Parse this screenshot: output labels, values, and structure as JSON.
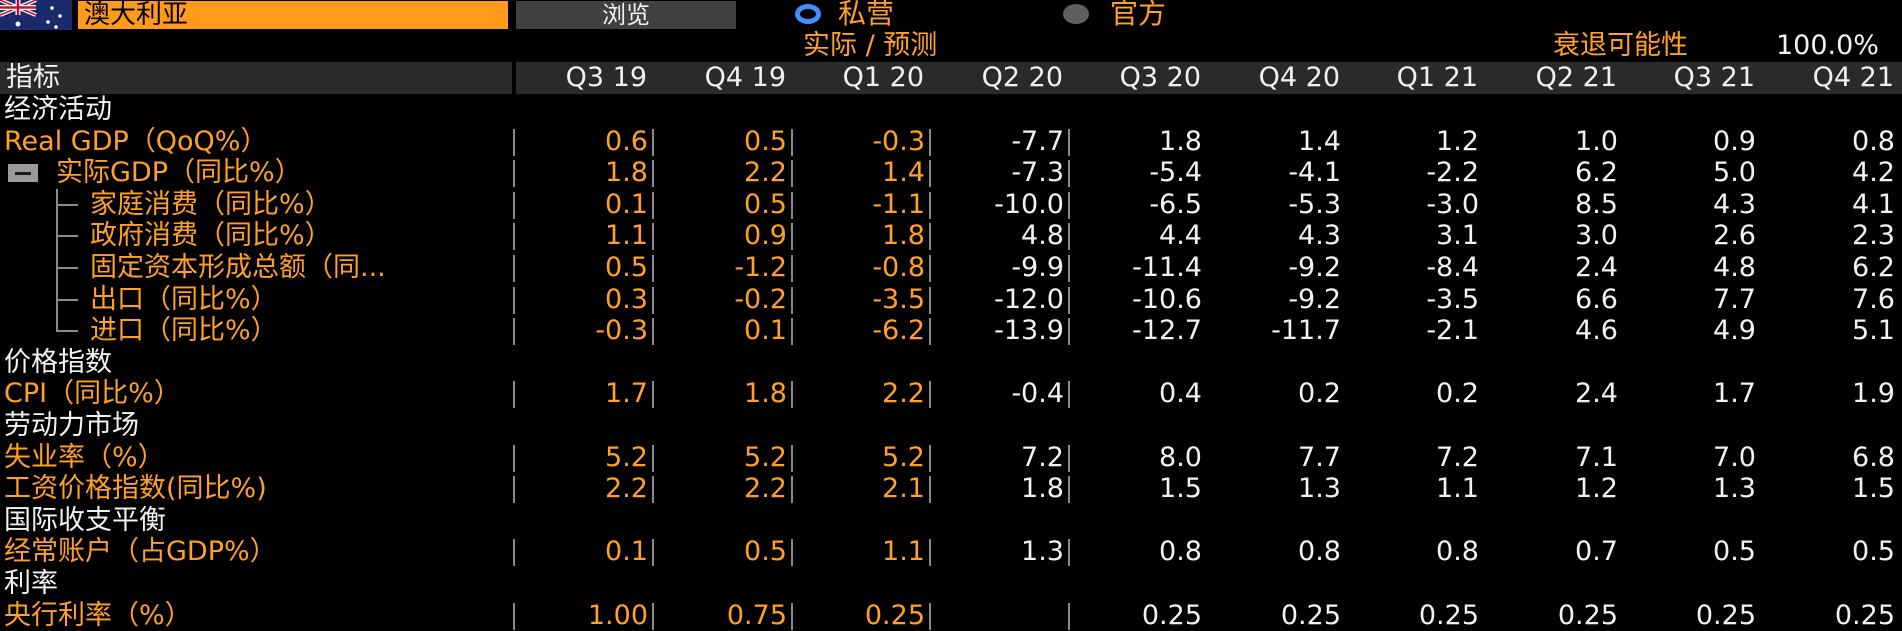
{
  "header": {
    "country": "澳大利亚",
    "browse_label": "浏览",
    "radio_private_label": "私营",
    "radio_official_label": "官方",
    "selected_source": "私营",
    "actual_forecast_label": "实际 / 预测",
    "recession_label": "衰退可能性",
    "recession_value": "100.0%"
  },
  "colors": {
    "orange": "#ffa028",
    "input_bg": "#ff9a1a",
    "radio_selected": "#3f8fff",
    "header_bg": "#2a2a2a"
  },
  "table": {
    "indicator_header": "指标",
    "columns": [
      "Q3 19",
      "Q4 19",
      "Q1 20",
      "Q2 20",
      "Q3 20",
      "Q4 20",
      "Q1 21",
      "Q2 21",
      "Q3 21",
      "Q4 21"
    ],
    "rows": [
      {
        "kind": "section",
        "label": "经济活动"
      },
      {
        "kind": "data",
        "label": "Real GDP（QoQ%）",
        "values": [
          "0.6",
          "0.5",
          "-0.3",
          "-7.7",
          "1.8",
          "1.4",
          "1.2",
          "1.0",
          "0.9",
          "0.8"
        ]
      },
      {
        "kind": "parent",
        "label": "实际GDP（同比%）",
        "values": [
          "1.8",
          "2.2",
          "1.4",
          "-7.3",
          "-5.4",
          "-4.1",
          "-2.2",
          "6.2",
          "5.0",
          "4.2"
        ]
      },
      {
        "kind": "child",
        "label": "家庭消费（同比%）",
        "values": [
          "0.1",
          "0.5",
          "-1.1",
          "-10.0",
          "-6.5",
          "-5.3",
          "-3.0",
          "8.5",
          "4.3",
          "4.1"
        ]
      },
      {
        "kind": "child",
        "label": "政府消费（同比%）",
        "values": [
          "1.1",
          "0.9",
          "1.8",
          "4.8",
          "4.4",
          "4.3",
          "3.1",
          "3.0",
          "2.6",
          "2.3"
        ]
      },
      {
        "kind": "child",
        "label": "固定资本形成总额（同...",
        "values": [
          "0.5",
          "-1.2",
          "-0.8",
          "-9.9",
          "-11.4",
          "-9.2",
          "-8.4",
          "2.4",
          "4.8",
          "6.2"
        ]
      },
      {
        "kind": "child",
        "label": "出口（同比%）",
        "values": [
          "0.3",
          "-0.2",
          "-3.5",
          "-12.0",
          "-10.6",
          "-9.2",
          "-3.5",
          "6.6",
          "7.7",
          "7.6"
        ]
      },
      {
        "kind": "child-last",
        "label": "进口（同比%）",
        "values": [
          "-0.3",
          "0.1",
          "-6.2",
          "-13.9",
          "-12.7",
          "-11.7",
          "-2.1",
          "4.6",
          "4.9",
          "5.1"
        ]
      },
      {
        "kind": "section",
        "label": "价格指数"
      },
      {
        "kind": "data",
        "label": "CPI（同比%）",
        "values": [
          "1.7",
          "1.8",
          "2.2",
          "-0.4",
          "0.4",
          "0.2",
          "0.2",
          "2.4",
          "1.7",
          "1.9"
        ]
      },
      {
        "kind": "section",
        "label": "劳动力市场"
      },
      {
        "kind": "data",
        "label": "失业率（%）",
        "values": [
          "5.2",
          "5.2",
          "5.2",
          "7.2",
          "8.0",
          "7.7",
          "7.2",
          "7.1",
          "7.0",
          "6.8"
        ]
      },
      {
        "kind": "data",
        "label": "工资价格指数(同比%)",
        "values": [
          "2.2",
          "2.2",
          "2.1",
          "1.8",
          "1.5",
          "1.3",
          "1.1",
          "1.2",
          "1.3",
          "1.5"
        ]
      },
      {
        "kind": "section",
        "label": "国际收支平衡"
      },
      {
        "kind": "data",
        "label": "经常账户（占GDP%）",
        "values": [
          "0.1",
          "0.5",
          "1.1",
          "1.3",
          "0.8",
          "0.8",
          "0.8",
          "0.7",
          "0.5",
          "0.5"
        ]
      },
      {
        "kind": "section",
        "label": "利率"
      },
      {
        "kind": "data",
        "label": "央行利率（%）",
        "values": [
          "1.00",
          "0.75",
          "0.25",
          "",
          "0.25",
          "0.25",
          "0.25",
          "0.25",
          "0.25",
          "0.25"
        ]
      }
    ]
  }
}
